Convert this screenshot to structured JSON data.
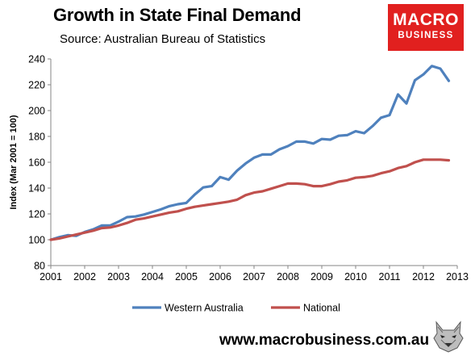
{
  "header": {
    "title": "Growth in State Final Demand",
    "subtitle": "Source: Australian Bureau of Statistics"
  },
  "logo": {
    "line1": "MACRO",
    "line2": "BUSINESS",
    "color": "#e1201f"
  },
  "footer": {
    "url": "www.macrobusiness.com.au",
    "mascot_icon": "wolf-head-icon"
  },
  "chart_data": {
    "type": "line",
    "title": "Growth in State Final Demand",
    "subtitle": "Source: Australian Bureau of Statistics",
    "xlabel": "",
    "ylabel": "Index (Mar 2001 = 100)",
    "xlim": [
      2001,
      2013
    ],
    "ylim": [
      80,
      240
    ],
    "xticks": [
      "2001",
      "2002",
      "2003",
      "2004",
      "2005",
      "2006",
      "2007",
      "2008",
      "2009",
      "2010",
      "2011",
      "2012",
      "2013"
    ],
    "yticks": [
      "80",
      "100",
      "120",
      "140",
      "160",
      "180",
      "200",
      "220",
      "240"
    ],
    "grid": false,
    "legend_position": "bottom",
    "series": [
      {
        "name": "Western Australia",
        "color": "#4f81bd",
        "x": [
          2001.0,
          2001.25,
          2001.5,
          2001.75,
          2002.0,
          2002.25,
          2002.5,
          2002.75,
          2003.0,
          2003.25,
          2003.5,
          2003.75,
          2004.0,
          2004.25,
          2004.5,
          2004.75,
          2005.0,
          2005.25,
          2005.5,
          2005.75,
          2006.0,
          2006.25,
          2006.5,
          2006.75,
          2007.0,
          2007.25,
          2007.5,
          2007.75,
          2008.0,
          2008.25,
          2008.5,
          2008.75,
          2009.0,
          2009.25,
          2009.5,
          2009.75,
          2010.0,
          2010.25,
          2010.5,
          2010.75,
          2011.0,
          2011.25,
          2011.5,
          2011.75,
          2012.0,
          2012.25,
          2012.5,
          2012.75
        ],
        "values": [
          100,
          102,
          103.5,
          103,
          106,
          108,
          111,
          111,
          114,
          117.5,
          118,
          119.5,
          121.5,
          123.5,
          126,
          127.5,
          128.5,
          135,
          140.5,
          141.5,
          148.5,
          146.5,
          153.5,
          159,
          163.5,
          166,
          166,
          170,
          172.5,
          176,
          176,
          174.5,
          178,
          177.5,
          180.5,
          181,
          184,
          182.5,
          188,
          194.5,
          196.5,
          212.5,
          205.5,
          223.5,
          228,
          234.5,
          232.5,
          223
        ]
      },
      {
        "name": "National",
        "color": "#c0504d",
        "x": [
          2001.0,
          2001.25,
          2001.5,
          2001.75,
          2002.0,
          2002.25,
          2002.5,
          2002.75,
          2003.0,
          2003.25,
          2003.5,
          2003.75,
          2004.0,
          2004.25,
          2004.5,
          2004.75,
          2005.0,
          2005.25,
          2005.5,
          2005.75,
          2006.0,
          2006.25,
          2006.5,
          2006.75,
          2007.0,
          2007.25,
          2007.5,
          2007.75,
          2008.0,
          2008.25,
          2008.5,
          2008.75,
          2009.0,
          2009.25,
          2009.5,
          2009.75,
          2010.0,
          2010.25,
          2010.5,
          2010.75,
          2011.0,
          2011.25,
          2011.5,
          2011.75,
          2012.0,
          2012.25,
          2012.5,
          2012.75
        ],
        "values": [
          100,
          101,
          102.5,
          104,
          105.5,
          107,
          109,
          109.5,
          111,
          113,
          115.5,
          116.5,
          118,
          119.5,
          121,
          122,
          124,
          125.5,
          126.5,
          127.5,
          128.5,
          129.5,
          131,
          134.5,
          136.5,
          137.5,
          139.5,
          141.5,
          143.5,
          143.5,
          143,
          141.5,
          141.5,
          143,
          145,
          146,
          148,
          148.5,
          149.5,
          151.5,
          153,
          155.5,
          157,
          160,
          162,
          162,
          162,
          161.5
        ]
      }
    ]
  }
}
